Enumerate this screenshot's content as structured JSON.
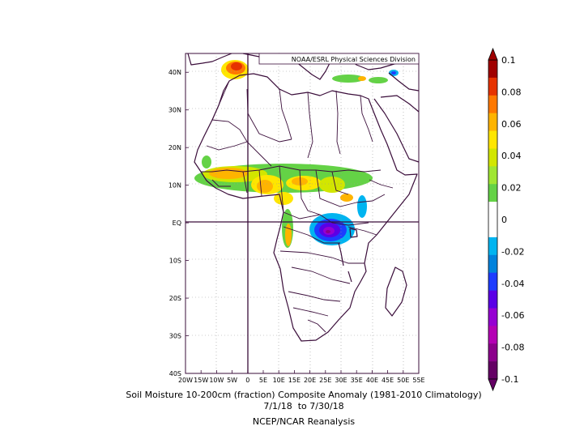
{
  "map": {
    "credit": "NOAA/ESRL Physical Sciences Division",
    "lon_ticks": [
      "20W",
      "15W",
      "10W",
      "5W",
      "0",
      "5E",
      "10E",
      "15E",
      "20E",
      "25E",
      "30E",
      "35E",
      "40E",
      "45E",
      "50E",
      "55E"
    ],
    "lat_ticks": [
      "40N",
      "30N",
      "20N",
      "10N",
      "EQ",
      "10S",
      "20S",
      "30S",
      "40S"
    ],
    "lon_range": [
      -20,
      55
    ],
    "lat_range": [
      -40,
      45
    ]
  },
  "colorbar": {
    "labels": [
      "0.1",
      "0.08",
      "0.06",
      "0.04",
      "0.02",
      "0",
      "-0.02",
      "-0.04",
      "-0.06",
      "-0.08",
      "-0.1"
    ],
    "colors": [
      "#a00000",
      "#e63200",
      "#ff7800",
      "#ffb400",
      "#ffe600",
      "#d2e600",
      "#a0e632",
      "#64d246",
      "#ffffff",
      "#ffffff",
      "#00b4f0",
      "#0082dc",
      "#1e3cff",
      "#5a00e6",
      "#9600d2",
      "#b400b4",
      "#8c008c",
      "#640064"
    ]
  },
  "caption": {
    "line1": "Soil Moisture 10-200cm (fraction) Composite Anomaly (1981-2010 Climatology)",
    "line2": "7/1/18  to 7/30/18",
    "line3": "NCEP/NCAR Reanalysis"
  }
}
